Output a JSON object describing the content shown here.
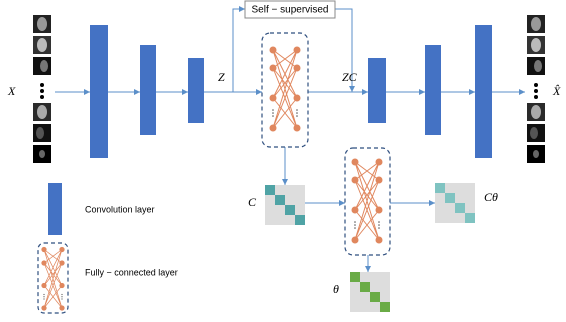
{
  "top_box": "Self − supervised",
  "labels": {
    "input": "X",
    "latent": "Z",
    "self_expressed": "ZC",
    "output": "X̂",
    "coefficient": "C",
    "coefficient_theta": "Cθ",
    "theta": "θ"
  },
  "legend": {
    "conv": "Convolution layer",
    "fc": "Fully − connected layer"
  }
}
